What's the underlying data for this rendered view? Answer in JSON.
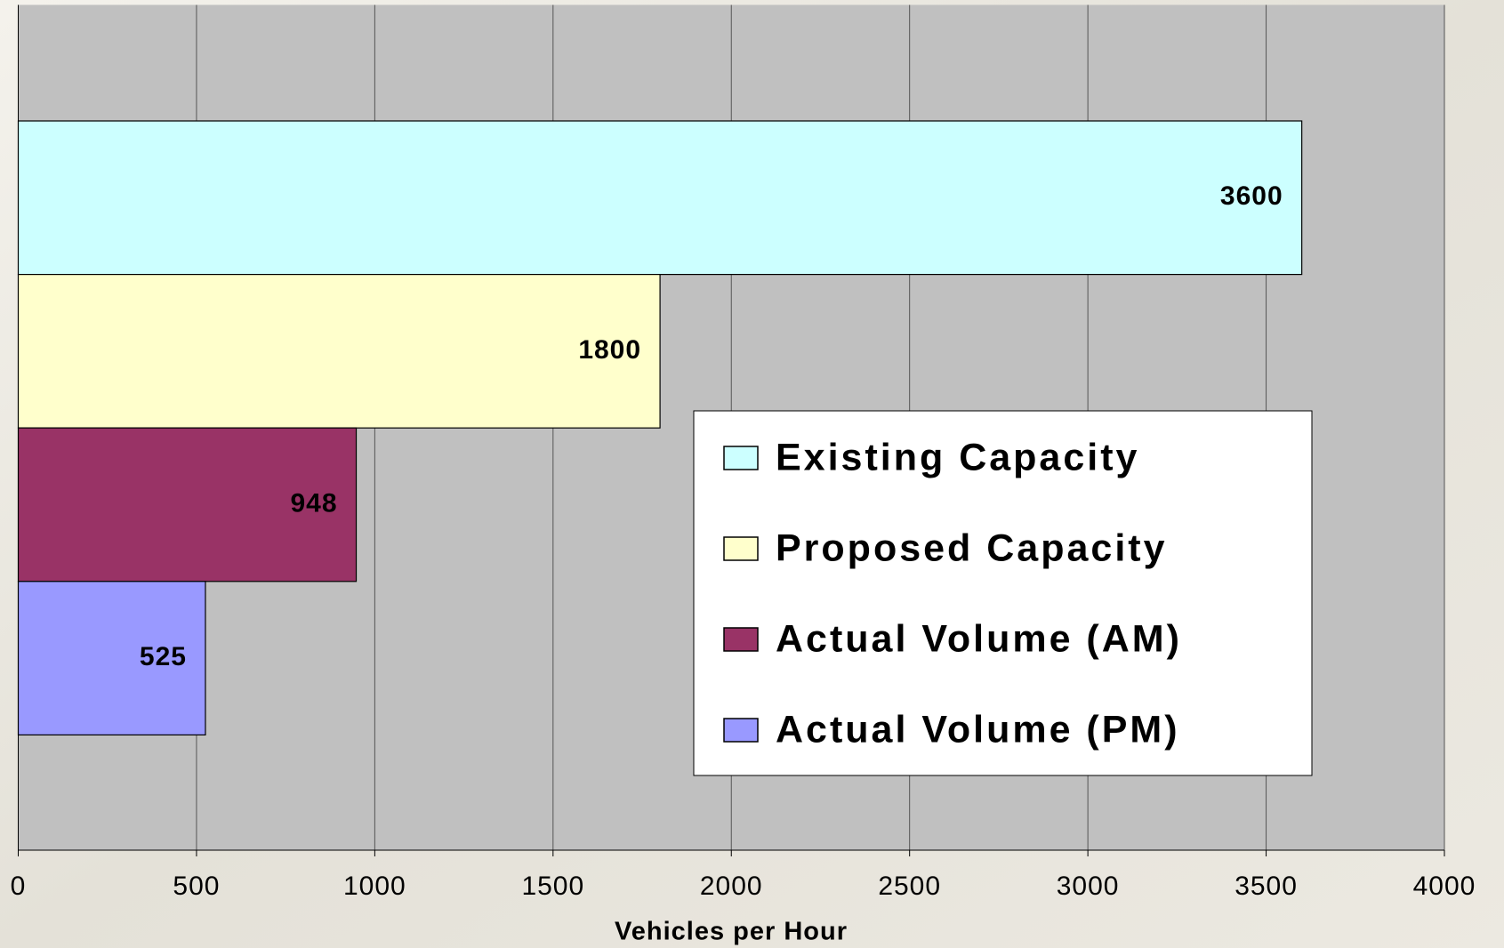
{
  "chart_data": {
    "type": "bar",
    "orientation": "horizontal",
    "categories": [
      null
    ],
    "series": [
      {
        "name": "Existing Capacity",
        "color": "#ccffff",
        "values": [
          3600
        ]
      },
      {
        "name": "Proposed Capacity",
        "color": "#ffffcc",
        "values": [
          1800
        ]
      },
      {
        "name": "Actual Volume (AM)",
        "color": "#993366",
        "values": [
          948
        ]
      },
      {
        "name": "Actual Volume (PM)",
        "color": "#9999ff",
        "values": [
          525
        ]
      }
    ],
    "x_label": "Vehicles per Hour",
    "xlim": [
      0,
      4000
    ],
    "xticks": [
      0,
      500,
      1000,
      1500,
      2000,
      2500,
      3000,
      3500,
      4000
    ],
    "grid": true,
    "legend": "right"
  }
}
